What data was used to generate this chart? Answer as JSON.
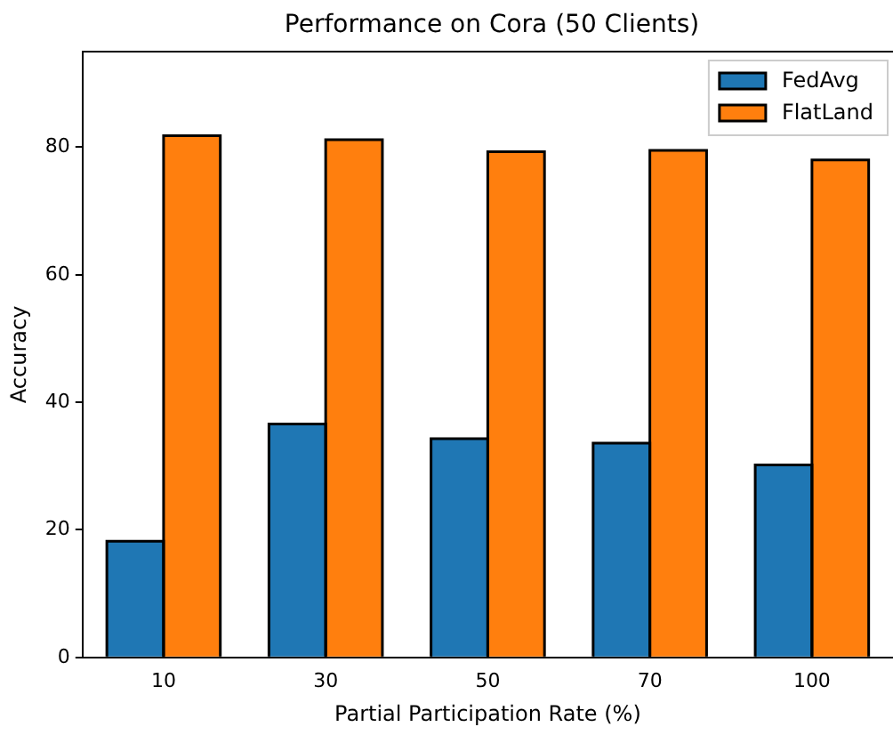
{
  "chart_data": {
    "type": "bar",
    "title": "Performance on Cora (50 Clients)",
    "xlabel": "Partial Participation Rate (%)",
    "ylabel": "Accuracy",
    "categories": [
      "10",
      "30",
      "50",
      "70",
      "100"
    ],
    "series": [
      {
        "name": "FedAvg",
        "color": "#1f77b4",
        "values": [
          18.2,
          36.6,
          34.3,
          33.6,
          30.2
        ]
      },
      {
        "name": "FlatLand",
        "color": "#ff7f0e",
        "values": [
          81.8,
          81.2,
          79.3,
          79.5,
          78.0
        ]
      }
    ],
    "ylim": [
      0,
      95
    ],
    "yticks": [
      0,
      20,
      40,
      60,
      80
    ],
    "grid": false,
    "legend": "top right"
  }
}
